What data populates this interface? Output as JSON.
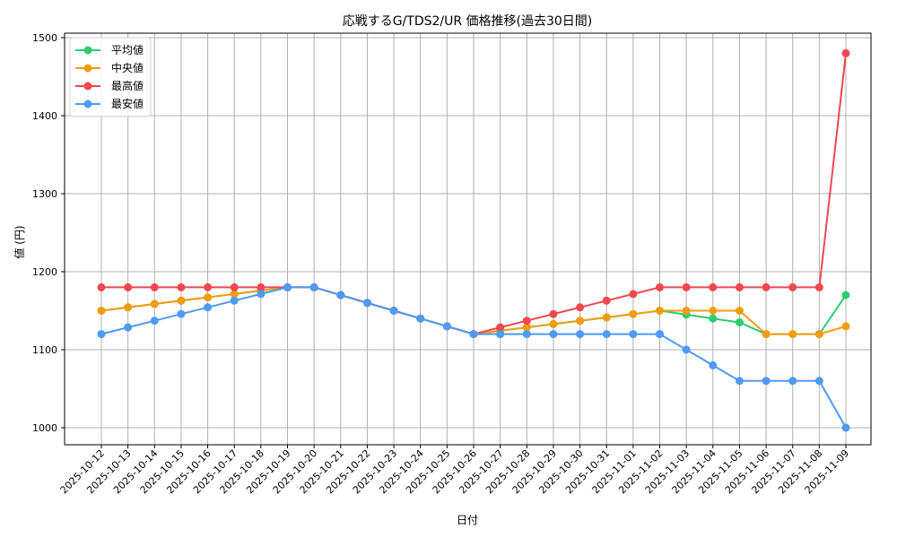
{
  "chart_data": {
    "type": "line",
    "title": "応戦するG/TDS2/UR 価格推移(過去30日間)",
    "xlabel": "日付",
    "ylabel": "値 (円)",
    "ylim": [
      975,
      1505
    ],
    "yticks": [
      1000,
      1100,
      1200,
      1300,
      1400,
      1500
    ],
    "grid": true,
    "legend_position": "upper left",
    "categories": [
      "2025-10-12",
      "2025-10-13",
      "2025-10-14",
      "2025-10-15",
      "2025-10-16",
      "2025-10-17",
      "2025-10-18",
      "2025-10-19",
      "2025-10-20",
      "2025-10-21",
      "2025-10-22",
      "2025-10-23",
      "2025-10-24",
      "2025-10-25",
      "2025-10-26",
      "2025-10-27",
      "2025-10-28",
      "2025-10-29",
      "2025-10-30",
      "2025-10-31",
      "2025-11-01",
      "2025-11-02",
      "2025-11-03",
      "2025-11-04",
      "2025-11-05",
      "2025-11-06",
      "2025-11-07",
      "2025-11-08",
      "2025-11-09"
    ],
    "series": [
      {
        "name": "平均値",
        "color": "#2ecc71",
        "values": [
          1150,
          1154.3,
          1158.6,
          1162.9,
          1167.1,
          1171.4,
          1175.7,
          1180,
          1180,
          1170,
          1160,
          1150,
          1140,
          1130,
          1120,
          1124.3,
          1128.6,
          1132.9,
          1137.1,
          1141.4,
          1145.7,
          1150,
          1145,
          1140,
          1135,
          1120,
          1120,
          1120,
          1170
        ]
      },
      {
        "name": "中央値",
        "color": "#f39c12",
        "values": [
          1150,
          1154.3,
          1158.6,
          1162.9,
          1167.1,
          1171.4,
          1175.7,
          1180,
          1180,
          1170,
          1160,
          1150,
          1140,
          1130,
          1120,
          1124.3,
          1128.6,
          1132.9,
          1137.1,
          1141.4,
          1145.7,
          1150,
          1150,
          1150,
          1150,
          1120,
          1120,
          1120,
          1130
        ]
      },
      {
        "name": "最高値",
        "color": "#f0484f",
        "values": [
          1180,
          1180,
          1180,
          1180,
          1180,
          1180,
          1180,
          1180,
          1180,
          1170,
          1160,
          1150,
          1140,
          1130,
          1120,
          1128.6,
          1137.1,
          1145.7,
          1154.3,
          1162.9,
          1171.4,
          1180,
          1180,
          1180,
          1180,
          1180,
          1180,
          1180,
          1480
        ]
      },
      {
        "name": "最安値",
        "color": "#4e9af7",
        "values": [
          1120,
          1128.6,
          1137.1,
          1145.7,
          1154.3,
          1162.9,
          1171.4,
          1180,
          1180,
          1170,
          1160,
          1150,
          1140,
          1130,
          1120,
          1120,
          1120,
          1120,
          1120,
          1120,
          1120,
          1120,
          1100,
          1080,
          1060,
          1060,
          1060,
          1060,
          1000
        ]
      }
    ]
  }
}
